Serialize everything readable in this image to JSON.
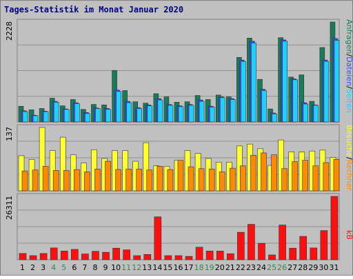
{
  "colors": {
    "frame": "#c0c0c0",
    "title": "#000080",
    "anfragen": "#1a7a5a",
    "dateien": "#3050ff",
    "seiten": "#20d0ff",
    "besuche": "#ffff33",
    "rechner": "#ff8a00",
    "kb": "#ff1010",
    "weekend": "#2a8a4a",
    "weekday": "#000000"
  },
  "chart_data": {
    "type": "bar",
    "title": "Tages-Statistik im Monat Januar 2020",
    "categories": [
      "1",
      "2",
      "3",
      "4",
      "5",
      "6",
      "7",
      "8",
      "9",
      "10",
      "11",
      "12",
      "13",
      "14",
      "15",
      "16",
      "17",
      "18",
      "19",
      "20",
      "21",
      "22",
      "23",
      "24",
      "25",
      "26",
      "27",
      "28",
      "29",
      "30",
      "31"
    ],
    "weekend_days": [
      "4",
      "5",
      "11",
      "12",
      "18",
      "19",
      "25",
      "26"
    ],
    "panels": [
      {
        "ymax_label": "2228",
        "ylim": [
          0,
          2228
        ],
        "series": [
          {
            "name": "Anfragen",
            "values": [
              350,
              270,
              300,
              530,
              360,
              500,
              280,
              390,
              380,
              1150,
              700,
              450,
              420,
              630,
              560,
              440,
              450,
              590,
              500,
              600,
              560,
              1440,
              1870,
              950,
              290,
              1880,
              1000,
              1050,
              460,
              1660,
              2228
            ]
          },
          {
            "name": "Dateien",
            "values": [
              250,
              150,
              240,
              460,
              290,
              430,
              210,
              310,
              300,
              710,
              460,
              320,
              380,
              520,
              390,
              360,
              390,
              490,
              350,
              560,
              520,
              1380,
              1800,
              730,
              200,
              1830,
              960,
              430,
              380,
              1380,
              1860
            ]
          },
          {
            "name": "Seiten",
            "values": [
              230,
              140,
              230,
              440,
              280,
              410,
              190,
              300,
              280,
              680,
              430,
              300,
              360,
              490,
              370,
              340,
              370,
              460,
              330,
              540,
              500,
              1350,
              1760,
              700,
              180,
              1800,
              940,
              400,
              370,
              1350,
              1820
            ]
          }
        ]
      },
      {
        "ymax_label": "137",
        "ylim": [
          0,
          137
        ],
        "series": [
          {
            "name": "Besuche",
            "values": [
              76,
              68,
              137,
              87,
              116,
              78,
              60,
              89,
              70,
              87,
              87,
              64,
              104,
              54,
              53,
              66,
              87,
              81,
              70,
              62,
              62,
              97,
              101,
              91,
              55,
              110,
              84,
              84,
              86,
              88,
              72
            ]
          },
          {
            "name": "Rechner",
            "values": [
              43,
              45,
              53,
              44,
              44,
              46,
              41,
              47,
              64,
              46,
              47,
              47,
              45,
              53,
              46,
              66,
              52,
              48,
              47,
              41,
              49,
              54,
              77,
              82,
              78,
              48,
              63,
              66,
              54,
              61,
              68
            ]
          }
        ]
      },
      {
        "ymax_label": "26311",
        "ylim": [
          0,
          26311
        ],
        "series": [
          {
            "name": "kB",
            "values": [
              2600,
              1700,
              2600,
              4900,
              3600,
              4300,
              2400,
              3500,
              3100,
              4800,
              4100,
              1700,
              2200,
              17800,
              1700,
              1700,
              1400,
              5200,
              3600,
              3600,
              2500,
              11400,
              14700,
              6800,
              2000,
              14400,
              4800,
              9700,
              4900,
              12100,
              26311
            ]
          }
        ]
      }
    ],
    "axis_labels": {
      "panel1": [
        "Anfragen",
        "/",
        "Dateien",
        "/",
        "Seiten"
      ],
      "panel2": [
        "Besuche",
        "/",
        "Rechner"
      ],
      "panel3": [
        "kB"
      ]
    }
  }
}
